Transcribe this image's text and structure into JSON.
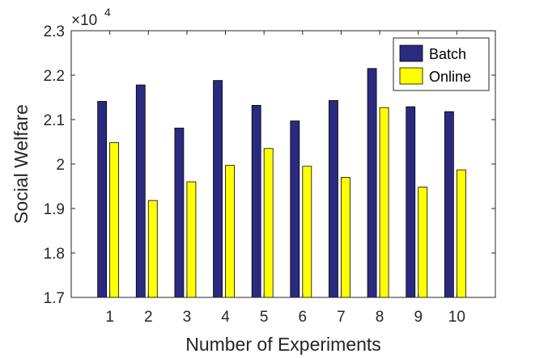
{
  "chart_data": {
    "type": "bar",
    "categories": [
      "1",
      "2",
      "3",
      "4",
      "5",
      "6",
      "7",
      "8",
      "9",
      "10"
    ],
    "series": [
      {
        "name": "Batch",
        "values": [
          2.141,
          2.178,
          2.081,
          2.188,
          2.132,
          2.097,
          2.143,
          2.215,
          2.129,
          2.118
        ],
        "color": "#2a2a80"
      },
      {
        "name": "Online",
        "values": [
          2.048,
          1.918,
          1.96,
          1.997,
          2.035,
          1.995,
          1.97,
          2.127,
          1.948,
          1.987
        ],
        "color": "#ffff00"
      }
    ],
    "xlabel": "Number of Experiments",
    "ylabel": "Social Welfare",
    "ylim": [
      1.7,
      2.3
    ],
    "yticks": [
      "1.7",
      "1.8",
      "1.9",
      "2",
      "2.1",
      "2.2",
      "2.3"
    ],
    "y_multiplier": {
      "base": "×10",
      "exponent": "4"
    },
    "legend_position": "top-right",
    "grid": false
  }
}
